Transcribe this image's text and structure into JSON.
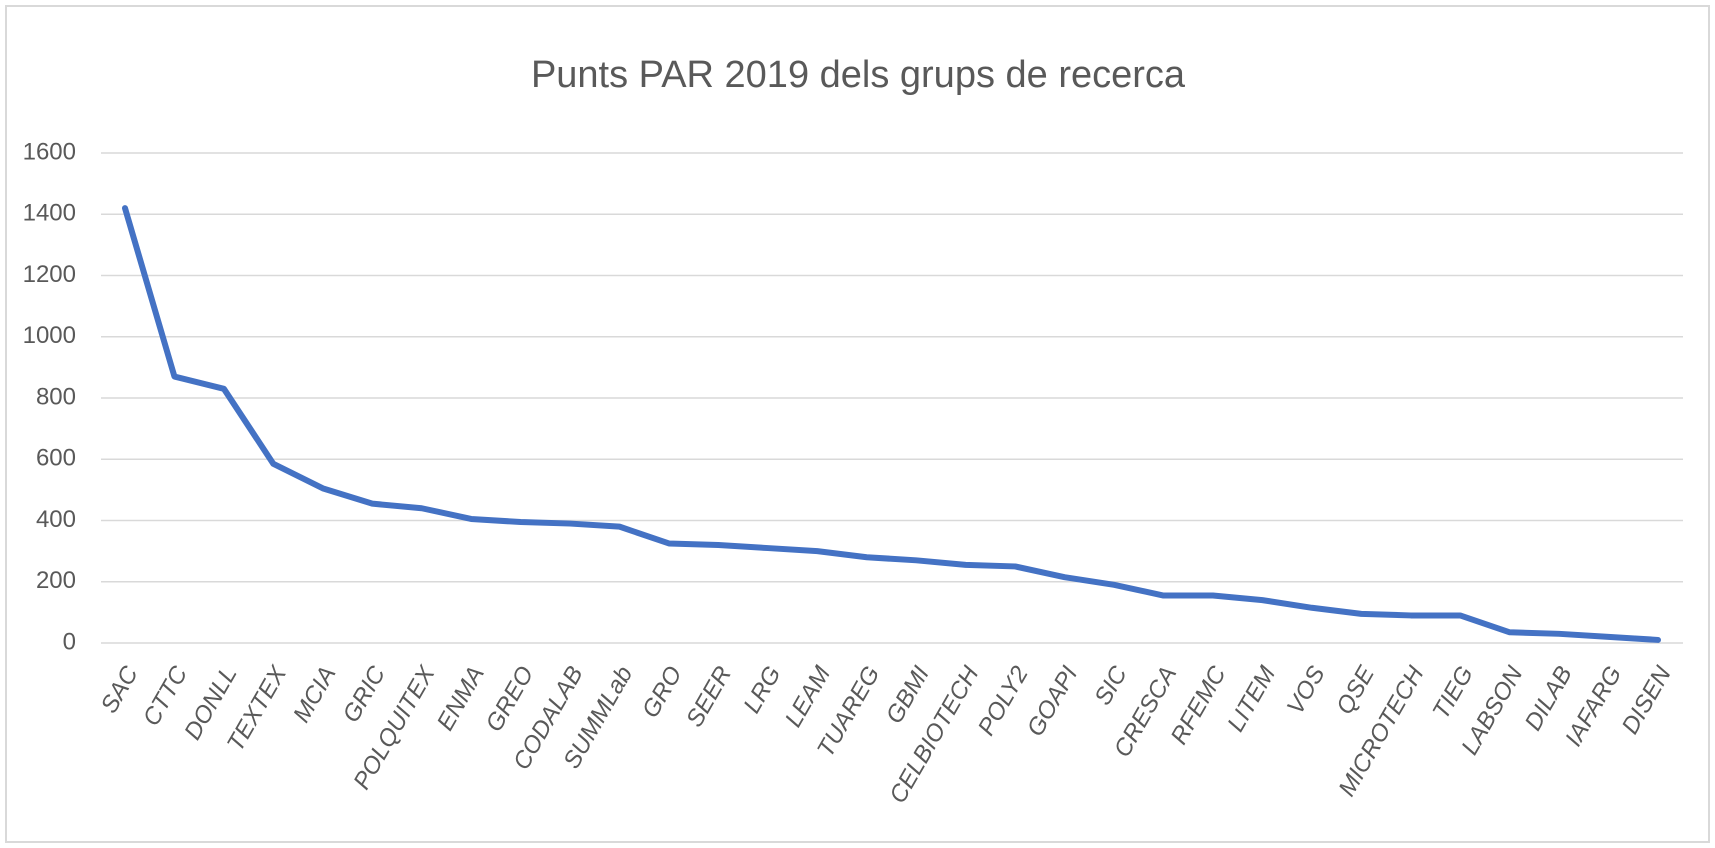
{
  "chart_data": {
    "type": "line",
    "title": "Punts PAR 2019 dels grups de recerca",
    "categories": [
      "SAC",
      "CTTC",
      "DONLL",
      "TEXTEX",
      "MCIA",
      "GRIC",
      "POLQUITEX",
      "ENMA",
      "GREO",
      "CODALAB",
      "SUMMLab",
      "GRO",
      "SEER",
      "LRG",
      "LEAM",
      "TUAREG",
      "GBMI",
      "CELBIOTECH",
      "POLY2",
      "GOAPI",
      "SIC",
      "CRESCA",
      "RFEMC",
      "LITEM",
      "VOS",
      "QSE",
      "MICROTECH",
      "TIEG",
      "LABSON",
      "DILAB",
      "IAFARG",
      "DISEN"
    ],
    "values": [
      1420,
      870,
      830,
      585,
      505,
      455,
      440,
      405,
      395,
      390,
      380,
      325,
      320,
      310,
      300,
      280,
      270,
      255,
      250,
      215,
      190,
      155,
      155,
      140,
      115,
      95,
      90,
      90,
      35,
      30,
      20,
      10
    ],
    "color": "#4472c4",
    "ylim": [
      0,
      1600
    ],
    "yticks": [
      0,
      200,
      400,
      600,
      800,
      1000,
      1200,
      1400,
      1600
    ],
    "grid": true
  }
}
